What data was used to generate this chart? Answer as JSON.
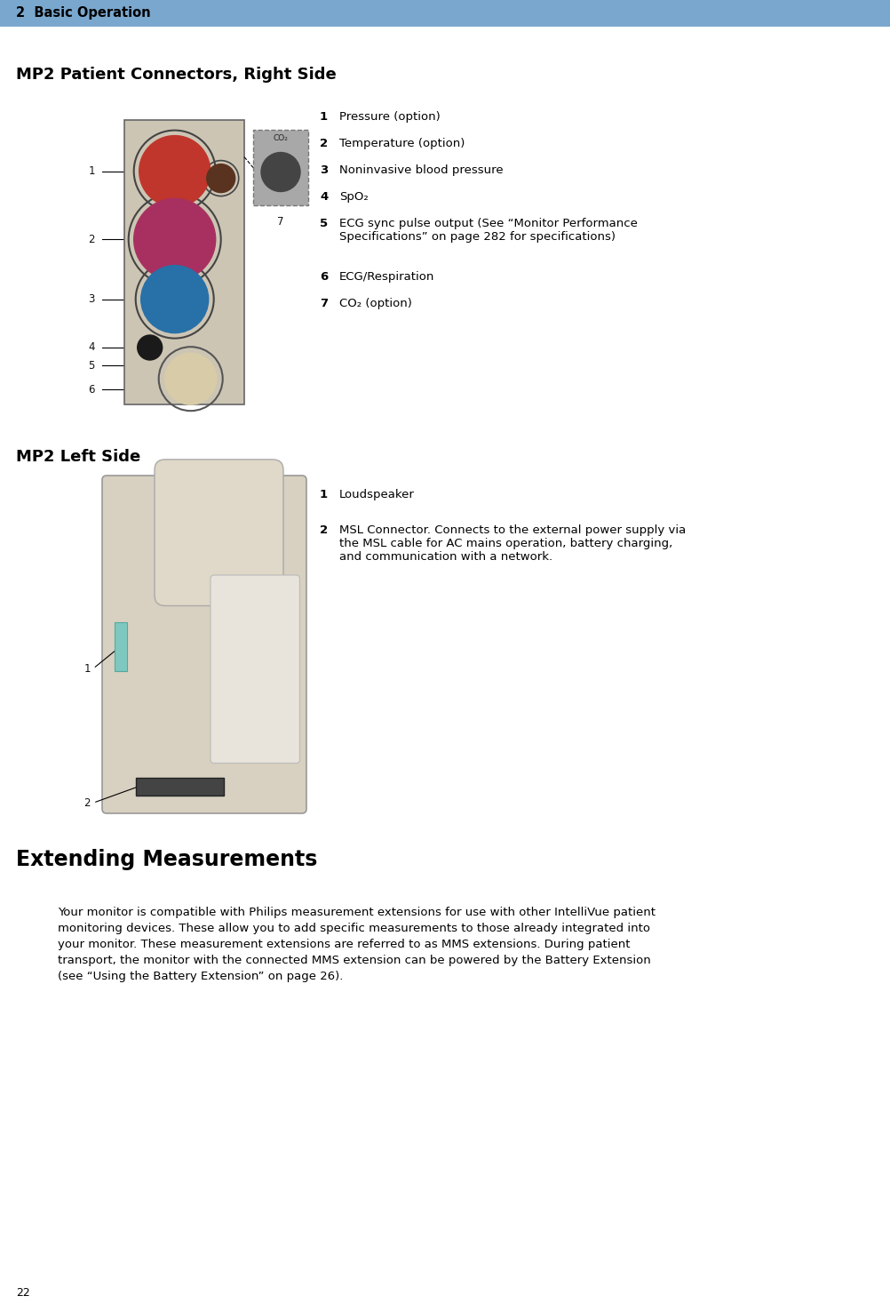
{
  "page_width": 10.03,
  "page_height": 14.76,
  "dpi": 100,
  "bg_color": "#ffffff",
  "header_color": "#7aa7ce",
  "header_text": "2  Basic Operation",
  "header_text_color": "#000000",
  "footer_page_number": "22",
  "section1_title": "MP2 Patient Connectors, Right Side",
  "section1_items": [
    {
      "num": "1",
      "text": "Pressure (option)"
    },
    {
      "num": "2",
      "text": "Temperature (option)"
    },
    {
      "num": "3",
      "text": "Noninvasive blood pressure"
    },
    {
      "num": "4",
      "text": "SpO₂"
    },
    {
      "num": "5",
      "text": "ECG sync pulse output (See “Monitor Performance\nSpecifications” on page 282 for specifications)"
    },
    {
      "num": "6",
      "text": "ECG/Respiration"
    },
    {
      "num": "7",
      "text": "CO₂ (option)"
    }
  ],
  "section2_title": "MP2 Left Side",
  "section2_items": [
    {
      "num": "1",
      "text": "Loudspeaker"
    },
    {
      "num": "2",
      "text": "MSL Connector. Connects to the external power supply via\nthe MSL cable for AC mains operation, battery charging,\nand communication with a network."
    }
  ],
  "section3_title": "Extending Measurements",
  "section3_body": "Your monitor is compatible with Philips measurement extensions for use with other IntelliVue patient\nmonitoring devices. These allow you to add specific measurements to those already integrated into\nyour monitor. These measurement extensions are referred to as MMS extensions. During patient\ntransport, the monitor with the connected MMS extension can be powered by the Battery Extension\n(see “Using the Battery Extension” on page 26).",
  "header_fontsize": 10.5,
  "section_title_fontsize": 13,
  "section3_title_fontsize": 17,
  "body_fontsize": 9.5,
  "item_fontsize": 9.5,
  "footer_fontsize": 9
}
